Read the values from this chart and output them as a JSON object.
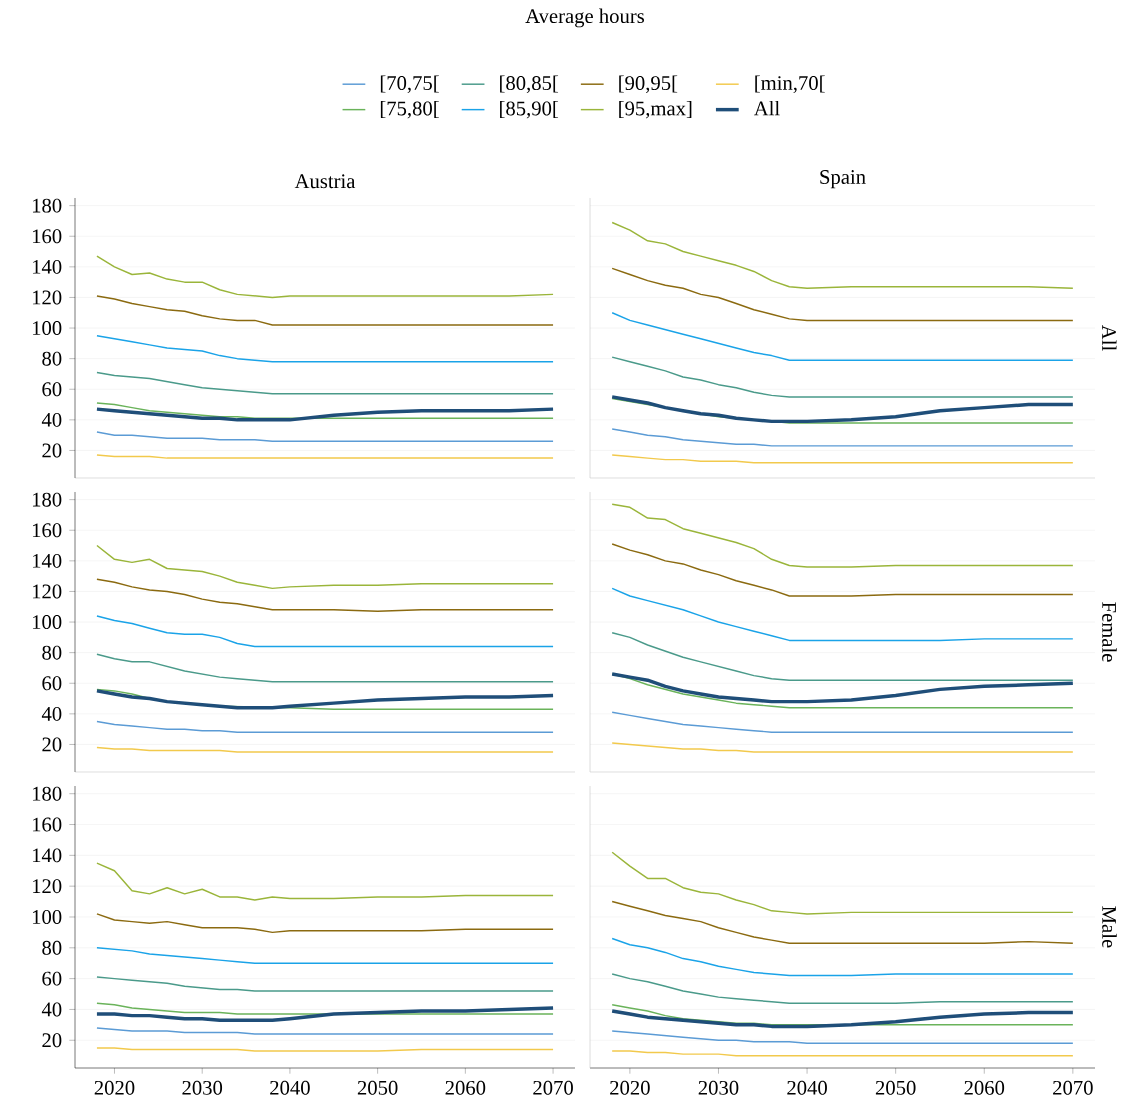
{
  "chart_data": [
    {
      "type": "line",
      "title": "Austria",
      "legend": "top",
      "legend_title": "Average hours",
      "grid": "y",
      "tick_labels": "y",
      "x": [
        2018,
        2020,
        2022,
        2024,
        2026,
        2028,
        2030,
        2032,
        2034,
        2036,
        2038,
        2040,
        2045,
        2050,
        2055,
        2060,
        2065,
        2070
      ],
      "xlim": [
        2015.5,
        2072.5
      ],
      "xticks": [
        2020,
        2030,
        2040,
        2050,
        2060,
        2070
      ],
      "ylim": [
        2,
        185
      ],
      "yticks": [
        20,
        40,
        60,
        80,
        100,
        120,
        140,
        160,
        180
      ],
      "series": [
        {
          "name": "[70,75[",
          "color": "#5b9bd5",
          "values": [
            32,
            30,
            30,
            29,
            28,
            28,
            28,
            27,
            27,
            27,
            26,
            26,
            26,
            26,
            26,
            26,
            26,
            26
          ]
        },
        {
          "name": "[80,85[",
          "color": "#4a9a8a",
          "values": [
            71,
            69,
            68,
            67,
            65,
            63,
            61,
            60,
            59,
            58,
            57,
            57,
            57,
            57,
            57,
            57,
            57,
            57
          ]
        },
        {
          "name": "[90,95[",
          "color": "#8b6a10",
          "values": [
            121,
            119,
            116,
            114,
            112,
            111,
            108,
            106,
            105,
            105,
            102,
            102,
            102,
            102,
            102,
            102,
            102,
            102
          ]
        },
        {
          "name": "[min,70[",
          "color": "#f2c94c",
          "values": [
            17,
            16,
            16,
            16,
            15,
            15,
            15,
            15,
            15,
            15,
            15,
            15,
            15,
            15,
            15,
            15,
            15,
            15
          ]
        },
        {
          "name": "[75,80[",
          "color": "#6ab35a",
          "values": [
            51,
            50,
            48,
            46,
            45,
            44,
            43,
            42,
            42,
            41,
            41,
            41,
            41,
            41,
            41,
            41,
            41,
            41
          ]
        },
        {
          "name": "[85,90[",
          "color": "#1aa3e8",
          "values": [
            95,
            93,
            91,
            89,
            87,
            86,
            85,
            82,
            80,
            79,
            78,
            78,
            78,
            78,
            78,
            78,
            78,
            78
          ]
        },
        {
          "name": "[95,max]",
          "color": "#9ab53a",
          "values": [
            147,
            140,
            135,
            136,
            132,
            130,
            130,
            125,
            122,
            121,
            120,
            121,
            121,
            121,
            121,
            121,
            121,
            122
          ]
        },
        {
          "name": "All",
          "color": "#1f4e79",
          "values": [
            47,
            46,
            45,
            44,
            43,
            42,
            41,
            41,
            40,
            40,
            40,
            40,
            43,
            45,
            46,
            46,
            46,
            47
          ]
        }
      ]
    },
    {
      "type": "line",
      "title": "Spain",
      "y2label": "All",
      "grid": "y",
      "tick_labels": false,
      "x": [
        2018,
        2020,
        2022,
        2024,
        2026,
        2028,
        2030,
        2032,
        2034,
        2036,
        2038,
        2040,
        2045,
        2050,
        2055,
        2060,
        2065,
        2070
      ],
      "xlim": [
        2015.5,
        2072.5
      ],
      "xticks": [
        2020,
        2030,
        2040,
        2050,
        2060,
        2070
      ],
      "ylim": [
        2,
        185
      ],
      "yticks": [
        20,
        40,
        60,
        80,
        100,
        120,
        140,
        160,
        180
      ],
      "series": [
        {
          "color": "#5b9bd5",
          "values": [
            34,
            32,
            30,
            29,
            27,
            26,
            25,
            24,
            24,
            23,
            23,
            23,
            23,
            23,
            23,
            23,
            23,
            23
          ]
        },
        {
          "color": "#4a9a8a",
          "values": [
            81,
            78,
            75,
            72,
            68,
            66,
            63,
            61,
            58,
            56,
            55,
            55,
            55,
            55,
            55,
            55,
            55,
            55
          ]
        },
        {
          "color": "#8b6a10",
          "values": [
            139,
            135,
            131,
            128,
            126,
            122,
            120,
            116,
            112,
            109,
            106,
            105,
            105,
            105,
            105,
            105,
            105,
            105
          ]
        },
        {
          "color": "#f2c94c",
          "values": [
            17,
            16,
            15,
            14,
            14,
            13,
            13,
            13,
            12,
            12,
            12,
            12,
            12,
            12,
            12,
            12,
            12,
            12
          ]
        },
        {
          "color": "#6ab35a",
          "values": [
            54,
            52,
            50,
            48,
            46,
            44,
            42,
            41,
            40,
            39,
            38,
            38,
            38,
            38,
            38,
            38,
            38,
            38
          ]
        },
        {
          "color": "#1aa3e8",
          "values": [
            110,
            105,
            102,
            99,
            96,
            93,
            90,
            87,
            84,
            82,
            79,
            79,
            79,
            79,
            79,
            79,
            79,
            79
          ]
        },
        {
          "color": "#9ab53a",
          "values": [
            169,
            164,
            157,
            155,
            150,
            147,
            144,
            141,
            137,
            131,
            127,
            126,
            127,
            127,
            127,
            127,
            127,
            126
          ]
        },
        {
          "color": "#1f4e79",
          "values": [
            55,
            53,
            51,
            48,
            46,
            44,
            43,
            41,
            40,
            39,
            39,
            39,
            40,
            42,
            46,
            48,
            50,
            50
          ]
        }
      ]
    },
    {
      "type": "line",
      "grid": "y",
      "tick_labels": "y",
      "x": [
        2018,
        2020,
        2022,
        2024,
        2026,
        2028,
        2030,
        2032,
        2034,
        2036,
        2038,
        2040,
        2045,
        2050,
        2055,
        2060,
        2065,
        2070
      ],
      "xlim": [
        2015.5,
        2072.5
      ],
      "xticks": [
        2020,
        2030,
        2040,
        2050,
        2060,
        2070
      ],
      "ylim": [
        2,
        185
      ],
      "yticks": [
        20,
        40,
        60,
        80,
        100,
        120,
        140,
        160,
        180
      ],
      "series": [
        {
          "color": "#5b9bd5",
          "values": [
            35,
            33,
            32,
            31,
            30,
            30,
            29,
            29,
            28,
            28,
            28,
            28,
            28,
            28,
            28,
            28,
            28,
            28
          ]
        },
        {
          "color": "#4a9a8a",
          "values": [
            79,
            76,
            74,
            74,
            71,
            68,
            66,
            64,
            63,
            62,
            61,
            61,
            61,
            61,
            61,
            61,
            61,
            61
          ]
        },
        {
          "color": "#8b6a10",
          "values": [
            128,
            126,
            123,
            121,
            120,
            118,
            115,
            113,
            112,
            110,
            108,
            108,
            108,
            107,
            108,
            108,
            108,
            108
          ]
        },
        {
          "color": "#f2c94c",
          "values": [
            18,
            17,
            17,
            16,
            16,
            16,
            16,
            16,
            15,
            15,
            15,
            15,
            15,
            15,
            15,
            15,
            15,
            15
          ]
        },
        {
          "color": "#6ab35a",
          "values": [
            56,
            55,
            53,
            50,
            48,
            47,
            46,
            45,
            null,
            null,
            null,
            44,
            43,
            43,
            43,
            43,
            43,
            43
          ]
        },
        {
          "color": "#1aa3e8",
          "values": [
            104,
            101,
            99,
            96,
            93,
            92,
            92,
            90,
            86,
            84,
            84,
            84,
            84,
            84,
            84,
            84,
            84,
            84
          ]
        },
        {
          "color": "#9ab53a",
          "values": [
            150,
            141,
            139,
            141,
            135,
            134,
            133,
            130,
            126,
            124,
            122,
            123,
            124,
            124,
            125,
            125,
            125,
            125
          ]
        },
        {
          "color": "#1f4e79",
          "values": [
            55,
            53,
            51,
            50,
            48,
            47,
            46,
            45,
            44,
            44,
            44,
            45,
            47,
            49,
            50,
            51,
            51,
            52
          ]
        }
      ]
    },
    {
      "type": "line",
      "y2label": "Female",
      "grid": "y",
      "tick_labels": false,
      "x": [
        2018,
        2020,
        2022,
        2024,
        2026,
        2028,
        2030,
        2032,
        2034,
        2036,
        2038,
        2040,
        2045,
        2050,
        2055,
        2060,
        2065,
        2070
      ],
      "xlim": [
        2015.5,
        2072.5
      ],
      "xticks": [
        2020,
        2030,
        2040,
        2050,
        2060,
        2070
      ],
      "ylim": [
        2,
        185
      ],
      "yticks": [
        20,
        40,
        60,
        80,
        100,
        120,
        140,
        160,
        180
      ],
      "series": [
        {
          "color": "#5b9bd5",
          "values": [
            41,
            39,
            37,
            35,
            33,
            32,
            31,
            30,
            29,
            28,
            28,
            28,
            28,
            28,
            28,
            28,
            28,
            28
          ]
        },
        {
          "color": "#4a9a8a",
          "values": [
            93,
            90,
            85,
            81,
            77,
            74,
            71,
            68,
            65,
            63,
            62,
            62,
            62,
            62,
            62,
            62,
            62,
            62
          ]
        },
        {
          "color": "#8b6a10",
          "values": [
            151,
            147,
            144,
            140,
            138,
            134,
            131,
            127,
            124,
            121,
            117,
            117,
            117,
            118,
            118,
            118,
            118,
            118
          ]
        },
        {
          "color": "#f2c94c",
          "values": [
            21,
            20,
            19,
            18,
            17,
            17,
            16,
            16,
            15,
            15,
            15,
            15,
            15,
            15,
            15,
            15,
            15,
            15
          ]
        },
        {
          "color": "#6ab35a",
          "values": [
            66,
            63,
            59,
            56,
            53,
            51,
            49,
            47,
            46,
            45,
            44,
            44,
            44,
            44,
            44,
            44,
            44,
            44
          ]
        },
        {
          "color": "#1aa3e8",
          "values": [
            122,
            117,
            114,
            111,
            108,
            104,
            100,
            97,
            94,
            91,
            88,
            88,
            88,
            88,
            88,
            89,
            89,
            89
          ]
        },
        {
          "color": "#9ab53a",
          "values": [
            177,
            175,
            168,
            167,
            161,
            158,
            155,
            152,
            148,
            141,
            137,
            136,
            136,
            137,
            137,
            137,
            137,
            137
          ]
        },
        {
          "color": "#1f4e79",
          "values": [
            66,
            64,
            62,
            58,
            55,
            53,
            51,
            50,
            49,
            48,
            48,
            48,
            49,
            52,
            56,
            58,
            59,
            60
          ]
        }
      ]
    },
    {
      "type": "line",
      "grid": "y",
      "x": [
        2018,
        2020,
        2022,
        2024,
        2026,
        2028,
        2030,
        2032,
        2034,
        2036,
        2038,
        2040,
        2045,
        2050,
        2055,
        2060,
        2065,
        2070
      ],
      "xlim": [
        2015.5,
        2072.5
      ],
      "xticks": [
        2020,
        2030,
        2040,
        2050,
        2060,
        2070
      ],
      "ylim": [
        2,
        185
      ],
      "yticks": [
        20,
        40,
        60,
        80,
        100,
        120,
        140,
        160,
        180
      ],
      "series": [
        {
          "color": "#5b9bd5",
          "values": [
            28,
            27,
            26,
            26,
            26,
            25,
            25,
            25,
            25,
            24,
            24,
            24,
            24,
            24,
            24,
            24,
            24,
            24
          ]
        },
        {
          "color": "#4a9a8a",
          "values": [
            61,
            60,
            59,
            58,
            57,
            55,
            54,
            53,
            53,
            52,
            52,
            52,
            52,
            52,
            52,
            52,
            52,
            52
          ]
        },
        {
          "color": "#8b6a10",
          "values": [
            102,
            98,
            97,
            96,
            97,
            95,
            93,
            93,
            93,
            92,
            90,
            91,
            91,
            91,
            91,
            92,
            92,
            92
          ]
        },
        {
          "color": "#f2c94c",
          "values": [
            15,
            15,
            14,
            14,
            14,
            14,
            14,
            14,
            14,
            13,
            13,
            13,
            13,
            13,
            14,
            14,
            14,
            14
          ]
        },
        {
          "color": "#6ab35a",
          "values": [
            44,
            43,
            41,
            40,
            39,
            38,
            38,
            38,
            37,
            37,
            37,
            37,
            37,
            37,
            37,
            37,
            37,
            37
          ]
        },
        {
          "color": "#1aa3e8",
          "values": [
            80,
            79,
            78,
            76,
            75,
            74,
            73,
            72,
            71,
            70,
            70,
            70,
            70,
            70,
            70,
            70,
            70,
            70
          ]
        },
        {
          "color": "#9ab53a",
          "values": [
            135,
            130,
            117,
            115,
            119,
            115,
            118,
            113,
            113,
            111,
            113,
            112,
            112,
            113,
            113,
            114,
            114,
            114
          ]
        },
        {
          "color": "#1f4e79",
          "values": [
            37,
            37,
            36,
            36,
            35,
            34,
            34,
            33,
            33,
            33,
            33,
            34,
            37,
            38,
            39,
            39,
            40,
            41
          ]
        }
      ]
    },
    {
      "type": "line",
      "y2label": "Male",
      "grid": "y",
      "tick_labels": "x",
      "x": [
        2018,
        2020,
        2022,
        2024,
        2026,
        2028,
        2030,
        2032,
        2034,
        2036,
        2038,
        2040,
        2045,
        2050,
        2055,
        2060,
        2065,
        2070
      ],
      "xlim": [
        2015.5,
        2072.5
      ],
      "xticks": [
        2020,
        2030,
        2040,
        2050,
        2060,
        2070
      ],
      "ylim": [
        2,
        185
      ],
      "yticks": [
        20,
        40,
        60,
        80,
        100,
        120,
        140,
        160,
        180
      ],
      "series": [
        {
          "color": "#5b9bd5",
          "values": [
            26,
            25,
            24,
            23,
            22,
            21,
            20,
            20,
            19,
            19,
            19,
            18,
            18,
            18,
            18,
            18,
            18,
            18
          ]
        },
        {
          "color": "#4a9a8a",
          "values": [
            63,
            60,
            58,
            55,
            52,
            50,
            48,
            47,
            46,
            45,
            44,
            44,
            44,
            44,
            45,
            45,
            45,
            45
          ]
        },
        {
          "color": "#8b6a10",
          "values": [
            110,
            107,
            104,
            101,
            99,
            97,
            93,
            90,
            87,
            85,
            83,
            83,
            83,
            83,
            83,
            83,
            84,
            83
          ]
        },
        {
          "color": "#f2c94c",
          "values": [
            13,
            13,
            12,
            12,
            11,
            11,
            11,
            10,
            10,
            10,
            10,
            10,
            10,
            10,
            10,
            10,
            10,
            10
          ]
        },
        {
          "color": "#6ab35a",
          "values": [
            43,
            41,
            39,
            36,
            34,
            33,
            32,
            31,
            31,
            30,
            30,
            30,
            30,
            30,
            30,
            30,
            30,
            30
          ]
        },
        {
          "color": "#1aa3e8",
          "values": [
            86,
            82,
            80,
            77,
            73,
            71,
            68,
            66,
            64,
            63,
            62,
            62,
            62,
            63,
            63,
            63,
            63,
            63
          ]
        },
        {
          "color": "#9ab53a",
          "values": [
            142,
            133,
            125,
            125,
            119,
            116,
            115,
            111,
            108,
            104,
            103,
            102,
            103,
            103,
            103,
            103,
            103,
            103
          ]
        },
        {
          "color": "#1f4e79",
          "values": [
            39,
            37,
            35,
            34,
            33,
            32,
            31,
            30,
            30,
            29,
            29,
            29,
            30,
            32,
            35,
            37,
            38,
            38
          ]
        }
      ]
    }
  ]
}
